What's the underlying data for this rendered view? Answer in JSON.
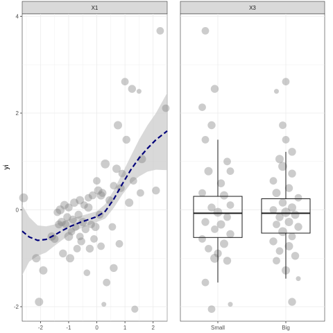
{
  "chart_data": {
    "ylabel": "yi",
    "ylim": [
      -2.3,
      4.05
    ],
    "y_ticks": [
      "-2",
      "0",
      "2",
      "4"
    ],
    "y_tick_values": [
      -2,
      0,
      2,
      4
    ],
    "grid": true,
    "colors": {
      "strip_fill": "#d9d9d9",
      "point_fill": "#7f7f7f",
      "fit_line": "#00007a",
      "ribbon": "#cccccc",
      "grid": "#ebebeb"
    },
    "panels": [
      {
        "type": "scatter",
        "strip_label": "X1",
        "xlim": [
          -2.65,
          2.5
        ],
        "x_ticks": [
          "-2",
          "-1",
          "0",
          "1",
          "2"
        ],
        "x_tick_values": [
          -2,
          -1,
          0,
          1,
          2
        ],
        "points": [
          [
            -2.6,
            0.25,
            1.3
          ],
          [
            -2.15,
            -1.0,
            1.2
          ],
          [
            -2.05,
            -1.9,
            1.2
          ],
          [
            -1.9,
            -1.25,
            1.2
          ],
          [
            -1.6,
            -0.55,
            1.2
          ],
          [
            -1.5,
            -0.6,
            1.1
          ],
          [
            -1.4,
            -0.05,
            1.0
          ],
          [
            -1.35,
            -0.3,
            1.1
          ],
          [
            -1.3,
            0.0,
            1.3
          ],
          [
            -1.25,
            -0.25,
            1.2
          ],
          [
            -1.2,
            -0.9,
            1.1
          ],
          [
            -1.15,
            0.1,
            1.2
          ],
          [
            -1.1,
            -0.3,
            1.0
          ],
          [
            -1.05,
            -0.15,
            1.1
          ],
          [
            -1.0,
            -0.55,
            1.3
          ],
          [
            -1.0,
            0.05,
            1.1
          ],
          [
            -0.95,
            -1.0,
            1.2
          ],
          [
            -0.9,
            -0.45,
            1.0
          ],
          [
            -0.85,
            -0.2,
            1.1
          ],
          [
            -0.8,
            0.15,
            1.2
          ],
          [
            -0.75,
            -0.35,
            1.0
          ],
          [
            -0.7,
            -0.8,
            1.0
          ],
          [
            -0.65,
            -0.1,
            1.1
          ],
          [
            -0.6,
            0.2,
            1.2
          ],
          [
            -0.55,
            -0.65,
            1.1
          ],
          [
            -0.5,
            -0.25,
            1.2
          ],
          [
            -0.45,
            0.1,
            1.0
          ],
          [
            -0.4,
            -0.4,
            1.1
          ],
          [
            -0.35,
            -1.3,
            0.8
          ],
          [
            -0.3,
            0.05,
            1.2
          ],
          [
            -0.25,
            -0.8,
            1.1
          ],
          [
            -0.2,
            -0.3,
            1.0
          ],
          [
            -0.15,
            0.3,
            1.1
          ],
          [
            -0.1,
            -0.6,
            1.0
          ],
          [
            -0.05,
            -0.35,
            1.2
          ],
          [
            0.0,
            0.6,
            1.0
          ],
          [
            0.05,
            0.4,
            1.2
          ],
          [
            0.1,
            -0.1,
            1.1
          ],
          [
            0.15,
            -0.75,
            1.0
          ],
          [
            0.2,
            0.35,
            1.1
          ],
          [
            0.25,
            -1.95,
            0.4
          ],
          [
            0.3,
            0.95,
            1.3
          ],
          [
            0.35,
            -1.5,
            1.0
          ],
          [
            0.45,
            0.2,
            1.1
          ],
          [
            0.55,
            -0.35,
            1.0
          ],
          [
            0.6,
            -1.2,
            1.1
          ],
          [
            0.7,
            0.85,
            1.2
          ],
          [
            0.75,
            1.75,
            1.2
          ],
          [
            0.8,
            -0.7,
            1.0
          ],
          [
            0.85,
            0.45,
            1.1
          ],
          [
            0.9,
            0.75,
            1.0
          ],
          [
            1.0,
            2.65,
            1.0
          ],
          [
            1.05,
            1.45,
            1.1
          ],
          [
            1.15,
            0.15,
            1.2
          ],
          [
            1.25,
            2.5,
            1.1
          ],
          [
            1.3,
            0.6,
            1.0
          ],
          [
            1.35,
            -2.05,
            0.9
          ],
          [
            1.5,
            2.45,
            0.4
          ],
          [
            1.55,
            0.35,
            1.0
          ],
          [
            1.6,
            1.05,
            1.2
          ],
          [
            2.1,
            0.4,
            1.1
          ],
          [
            2.25,
            3.7,
            1.0
          ],
          [
            2.45,
            2.1,
            1.0
          ],
          [
            -0.6,
            -0.55,
            1.0
          ],
          [
            -0.3,
            0.25,
            1.0
          ],
          [
            0.15,
            0.3,
            1.2
          ],
          [
            0.6,
            0.5,
            1.0
          ]
        ],
        "fit_line": [
          [
            -2.65,
            -0.44
          ],
          [
            -2.4,
            -0.56
          ],
          [
            -2.1,
            -0.63
          ],
          [
            -1.8,
            -0.61
          ],
          [
            -1.5,
            -0.52
          ],
          [
            -1.2,
            -0.42
          ],
          [
            -0.9,
            -0.33
          ],
          [
            -0.6,
            -0.26
          ],
          [
            -0.3,
            -0.2
          ],
          [
            0.0,
            -0.14
          ],
          [
            0.3,
            -0.03
          ],
          [
            0.6,
            0.22
          ],
          [
            0.9,
            0.53
          ],
          [
            1.2,
            0.82
          ],
          [
            1.5,
            1.07
          ],
          [
            1.8,
            1.27
          ],
          [
            2.1,
            1.45
          ],
          [
            2.5,
            1.63
          ]
        ],
        "ribbon_upper": [
          [
            -2.65,
            0.1
          ],
          [
            -2.4,
            -0.15
          ],
          [
            -2.1,
            -0.32
          ],
          [
            -1.8,
            -0.34
          ],
          [
            -1.5,
            -0.3
          ],
          [
            -1.2,
            -0.23
          ],
          [
            -0.9,
            -0.18
          ],
          [
            -0.6,
            -0.13
          ],
          [
            -0.3,
            -0.08
          ],
          [
            0.0,
            -0.03
          ],
          [
            0.3,
            0.12
          ],
          [
            0.6,
            0.4
          ],
          [
            0.9,
            0.75
          ],
          [
            1.2,
            1.1
          ],
          [
            1.5,
            1.45
          ],
          [
            1.8,
            1.75
          ],
          [
            2.1,
            2.0
          ],
          [
            2.5,
            2.42
          ]
        ],
        "ribbon_lower": [
          [
            -2.65,
            -1.35
          ],
          [
            -2.4,
            -1.07
          ],
          [
            -2.1,
            -0.95
          ],
          [
            -1.8,
            -0.88
          ],
          [
            -1.5,
            -0.74
          ],
          [
            -1.2,
            -0.61
          ],
          [
            -0.9,
            -0.48
          ],
          [
            -0.6,
            -0.39
          ],
          [
            -0.3,
            -0.32
          ],
          [
            0.0,
            -0.25
          ],
          [
            0.3,
            -0.18
          ],
          [
            0.6,
            0.04
          ],
          [
            0.9,
            0.31
          ],
          [
            1.2,
            0.54
          ],
          [
            1.5,
            0.69
          ],
          [
            1.8,
            0.79
          ],
          [
            2.1,
            0.83
          ],
          [
            2.5,
            0.82
          ]
        ]
      },
      {
        "type": "box",
        "strip_label": "X3",
        "categories": [
          "Small",
          "Big"
        ],
        "boxes": [
          {
            "category": "Small",
            "whisker_low": -1.5,
            "q1": -0.57,
            "median": -0.07,
            "q3": 0.28,
            "whisker_high": 1.45
          },
          {
            "category": "Big",
            "whisker_low": -1.42,
            "q1": -0.48,
            "median": -0.07,
            "q3": 0.23,
            "whisker_high": 1.2
          }
        ],
        "points_small": [
          [
            -0.2,
            3.7,
            1.0
          ],
          [
            -0.05,
            2.5,
            1.1
          ],
          [
            -0.25,
            2.12,
            1.0
          ],
          [
            -0.1,
            1.75,
            1.1
          ],
          [
            -0.2,
            1.45,
            1.0
          ],
          [
            0.15,
            1.0,
            1.0
          ],
          [
            -0.15,
            0.8,
            1.2
          ],
          [
            0.2,
            0.8,
            1.0
          ],
          [
            0.05,
            0.55,
            1.1
          ],
          [
            -0.25,
            0.35,
            1.0
          ],
          [
            0.1,
            0.3,
            1.2
          ],
          [
            0.2,
            0.1,
            1.0
          ],
          [
            -0.1,
            0.05,
            1.1
          ],
          [
            0.0,
            -0.05,
            1.3
          ],
          [
            0.15,
            -0.15,
            1.0
          ],
          [
            -0.2,
            -0.25,
            1.1
          ],
          [
            0.05,
            -0.3,
            1.2
          ],
          [
            -0.05,
            -0.4,
            1.0
          ],
          [
            0.2,
            -0.5,
            1.1
          ],
          [
            -0.25,
            -0.6,
            1.0
          ],
          [
            0.1,
            -0.7,
            1.2
          ],
          [
            -0.15,
            -0.8,
            1.0
          ],
          [
            0.0,
            -0.9,
            1.1
          ],
          [
            -0.05,
            -1.0,
            1.3
          ],
          [
            0.15,
            -1.05,
            1.1
          ],
          [
            -0.2,
            -1.5,
            1.0
          ],
          [
            0.2,
            -1.95,
            0.4
          ],
          [
            -0.1,
            -2.05,
            1.0
          ]
        ],
        "points_big": [
          [
            0.0,
            2.65,
            1.0
          ],
          [
            -0.15,
            2.45,
            0.4
          ],
          [
            -0.05,
            1.75,
            1.0
          ],
          [
            0.0,
            1.45,
            1.0
          ],
          [
            0.1,
            1.2,
            1.1
          ],
          [
            -0.1,
            1.05,
            1.2
          ],
          [
            -0.05,
            0.9,
            1.3
          ],
          [
            0.1,
            0.75,
            1.1
          ],
          [
            -0.2,
            0.6,
            1.0
          ],
          [
            0.05,
            0.45,
            1.1
          ],
          [
            -0.15,
            0.35,
            1.2
          ],
          [
            0.2,
            0.25,
            1.0
          ],
          [
            -0.05,
            0.15,
            1.1
          ],
          [
            0.1,
            0.05,
            1.2
          ],
          [
            -0.2,
            0.0,
            1.0
          ],
          [
            0.0,
            -0.05,
            1.4
          ],
          [
            0.15,
            -0.1,
            1.2
          ],
          [
            -0.1,
            -0.15,
            1.1
          ],
          [
            0.05,
            -0.25,
            1.2
          ],
          [
            -0.15,
            -0.3,
            1.0
          ],
          [
            0.2,
            -0.35,
            1.1
          ],
          [
            -0.05,
            -0.45,
            1.3
          ],
          [
            0.1,
            -0.55,
            1.0
          ],
          [
            -0.2,
            -0.65,
            1.1
          ],
          [
            0.05,
            -0.75,
            1.2
          ],
          [
            -0.1,
            -0.85,
            1.0
          ],
          [
            0.15,
            -0.95,
            1.1
          ],
          [
            -0.15,
            -1.05,
            1.0
          ],
          [
            0.0,
            -1.25,
            1.2
          ],
          [
            0.2,
            -1.42,
            0.4
          ],
          [
            0.1,
            -1.9,
            1.1
          ]
        ]
      }
    ]
  }
}
